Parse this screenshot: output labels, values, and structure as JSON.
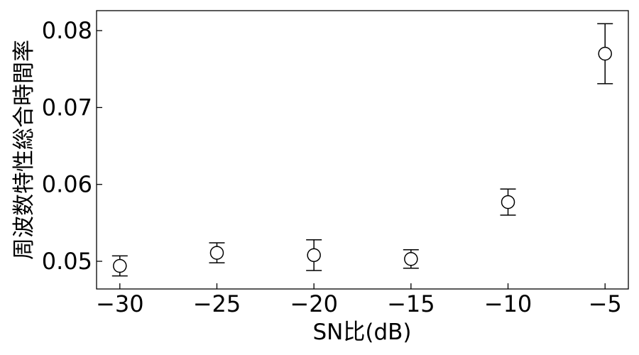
{
  "chart_data": {
    "type": "scatter",
    "xlabel": "SN比(dB)",
    "ylabel": "周波数特性総合時間率",
    "x": [
      -30,
      -25,
      -20,
      -15,
      -10,
      -5
    ],
    "y": [
      0.0494,
      0.0511,
      0.0508,
      0.0503,
      0.0577,
      0.077
    ],
    "yerr": [
      0.0013,
      0.0013,
      0.002,
      0.0012,
      0.0017,
      0.0039
    ],
    "xlim": [
      -31.2,
      -3.8
    ],
    "ylim": [
      0.0464,
      0.0826
    ],
    "xticks": [
      -30,
      -25,
      -20,
      -15,
      -10,
      -5
    ],
    "xtick_labels": [
      "−30",
      "−25",
      "−20",
      "−15",
      "−10",
      "−5"
    ],
    "yticks": [
      0.05,
      0.06,
      0.07,
      0.08
    ],
    "ytick_labels": [
      "0.05",
      "0.06",
      "0.07",
      "0.08"
    ],
    "marker": "open-circle",
    "grid": false,
    "colors": {
      "marker": "#000000",
      "axes": "#000000",
      "background": "#ffffff"
    }
  }
}
